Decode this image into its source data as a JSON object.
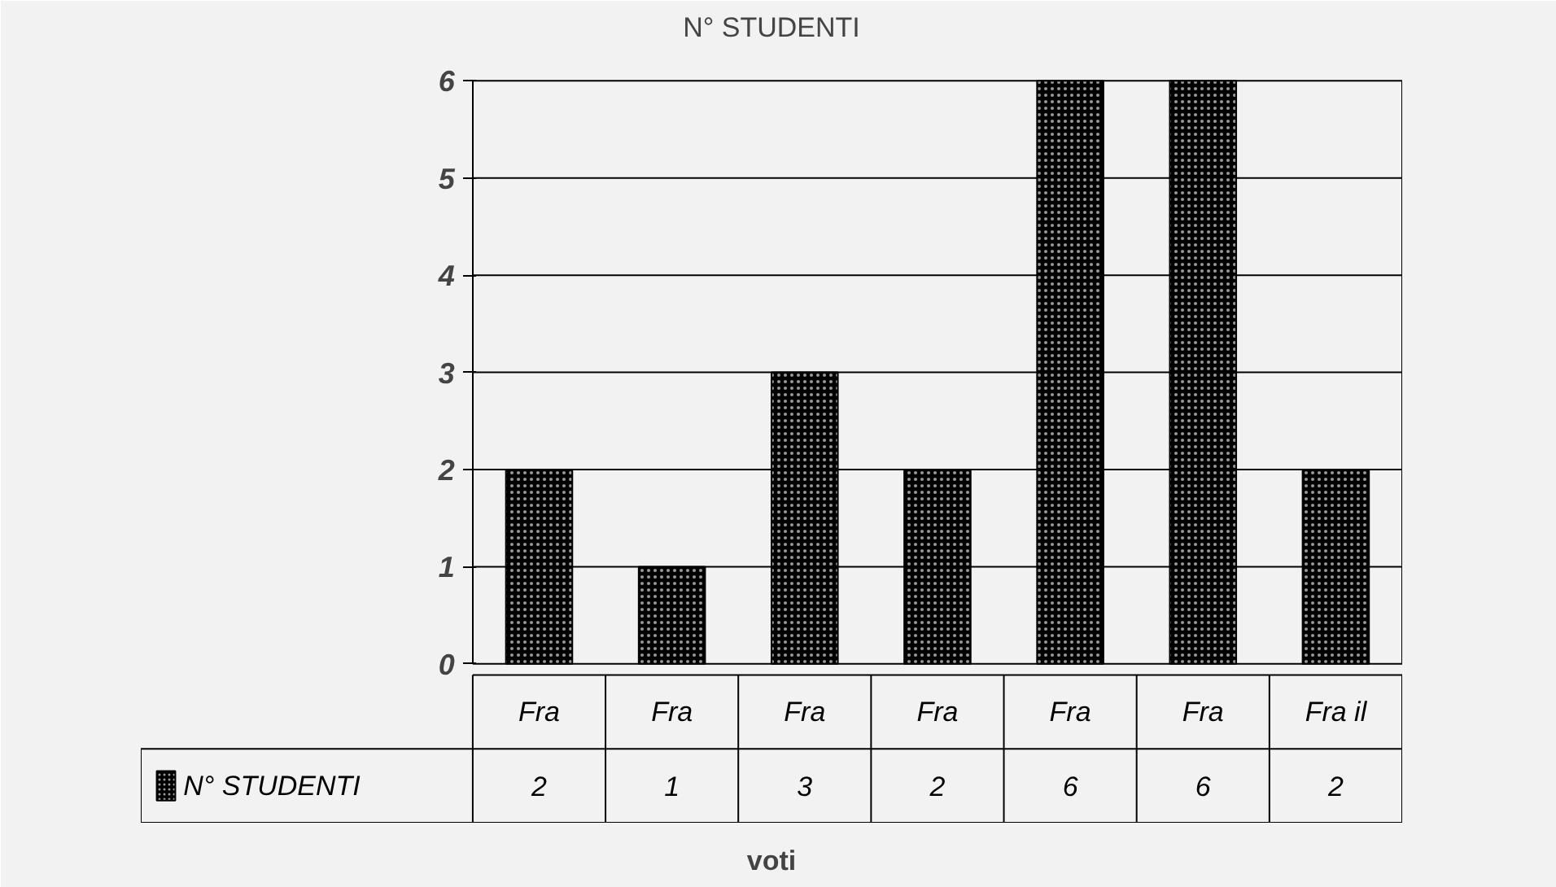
{
  "chart_data": {
    "type": "bar",
    "title": "N° STUDENTI",
    "xlabel": "voti",
    "categories": [
      "Fra",
      "Fra",
      "Fra",
      "Fra",
      "Fra",
      "Fra",
      "Fra il"
    ],
    "series": [
      {
        "name": "N° STUDENTI",
        "color": "#000000",
        "values": [
          2,
          1,
          3,
          2,
          6,
          6,
          2
        ]
      }
    ],
    "ylim": [
      0,
      6
    ],
    "yticks": [
      0,
      1,
      2,
      3,
      4,
      5,
      6
    ],
    "grid": "y",
    "legend": "bottom left",
    "data_labels": true
  }
}
